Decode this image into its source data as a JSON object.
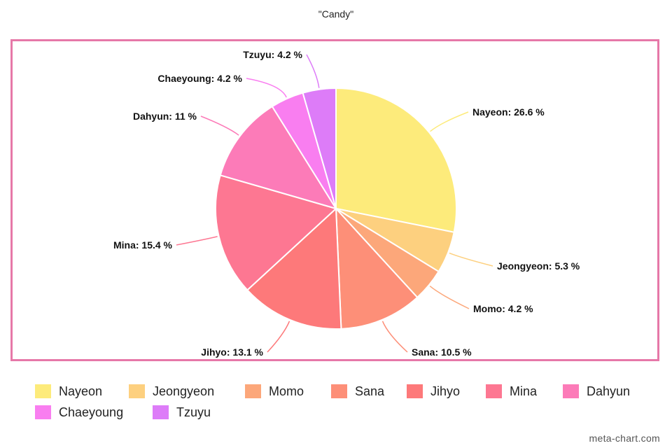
{
  "chart_data": {
    "type": "pie",
    "title": "\"Candy\"",
    "slices": [
      {
        "name": "Nayeon",
        "value": 26.6,
        "label": "Nayeon: 26.6 %",
        "color": "#fdeb7b"
      },
      {
        "name": "Jeongyeon",
        "value": 5.3,
        "label": "Jeongyeon: 5.3 %",
        "color": "#fdd07f"
      },
      {
        "name": "Momo",
        "value": 4.2,
        "label": "Momo: 4.2 %",
        "color": "#fca77a"
      },
      {
        "name": "Sana",
        "value": 10.5,
        "label": "Sana: 10.5 %",
        "color": "#fd8f78"
      },
      {
        "name": "Jihyo",
        "value": 13.1,
        "label": "Jihyo: 13.1 %",
        "color": "#fd797a"
      },
      {
        "name": "Mina",
        "value": 15.4,
        "label": "Mina: 15.4 %",
        "color": "#fd7792"
      },
      {
        "name": "Dahyun",
        "value": 11,
        "label": "Dahyun: 11 %",
        "color": "#fc7bb8"
      },
      {
        "name": "Chaeyoung",
        "value": 4.2,
        "label": "Chaeyoung: 4.2 %",
        "color": "#f97ef0"
      },
      {
        "name": "Tzuyu",
        "value": 4.2,
        "label": "Tzuyu: 4.2 %",
        "color": "#dd7cf8"
      }
    ],
    "legend_placement": "bottom"
  },
  "frame_color": "#e678a8",
  "credit": "meta-chart.com"
}
